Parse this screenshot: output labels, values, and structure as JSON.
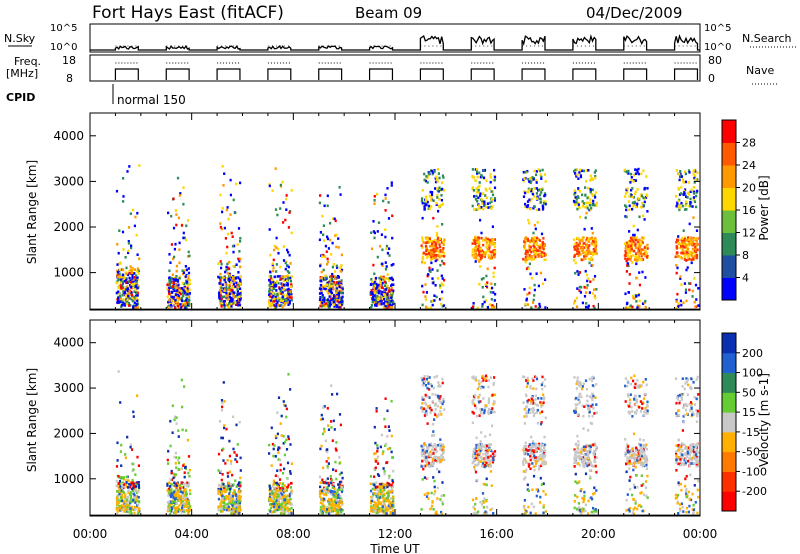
{
  "header": {
    "title": "Fort Hays East (fitACF)",
    "beam": "Beam 09",
    "date": "04/Dec/2009"
  },
  "strips": {
    "nsky": {
      "label": "N.Sky",
      "ticks": [
        "10^5",
        "10^0"
      ]
    },
    "freq": {
      "label1": "Freq.",
      "label2": "[MHz]",
      "ticks": [
        "18",
        "8"
      ]
    },
    "nsearch": {
      "label": "N.Search",
      "ticks": [
        "10^5",
        "10^0"
      ]
    },
    "nave": {
      "label": "Nave",
      "ticks": [
        "80",
        "0"
      ]
    },
    "cpid": {
      "label": "CPID",
      "value": "normal 150"
    }
  },
  "chart_data": [
    {
      "type": "heatmap",
      "panel": "power",
      "ylabel": "Slant Range [km]",
      "ylim": [
        180,
        4500
      ],
      "yticks": [
        "1000",
        "2000",
        "3000",
        "4000"
      ],
      "xticks": [
        "00:00",
        "04:00",
        "08:00",
        "12:00",
        "16:00",
        "20:00",
        "00:00"
      ],
      "xlim_hours": [
        0,
        24
      ],
      "colorbar": {
        "label": "Power [dB]",
        "ticks": [
          "4",
          "8",
          "12",
          "16",
          "20",
          "24",
          "28"
        ],
        "colors": [
          "#0000ff",
          "#1f4fa0",
          "#2e8b57",
          "#6bbf3a",
          "#ffd700",
          "#ff9900",
          "#ff5a00",
          "#ff0000"
        ]
      }
    },
    {
      "type": "heatmap",
      "panel": "velocity",
      "ylabel": "Slant Range [km]",
      "ylim": [
        180,
        4500
      ],
      "yticks": [
        "1000",
        "2000",
        "3000",
        "4000"
      ],
      "xticks": [
        "00:00",
        "04:00",
        "08:00",
        "12:00",
        "16:00",
        "20:00",
        "00:00"
      ],
      "xlabel": "Time UT",
      "xlim_hours": [
        0,
        24
      ],
      "colorbar": {
        "label": "Velocity [m s-1]",
        "ticks": [
          "200",
          "100",
          "50",
          "15",
          "-15",
          "-50",
          "-100",
          "-200"
        ],
        "colors": [
          "#0a2fb0",
          "#2060d0",
          "#2e8b57",
          "#66cc33",
          "#c8c8c8",
          "#ffb000",
          "#ff7a00",
          "#ff3000",
          "#ff0000"
        ]
      }
    }
  ]
}
